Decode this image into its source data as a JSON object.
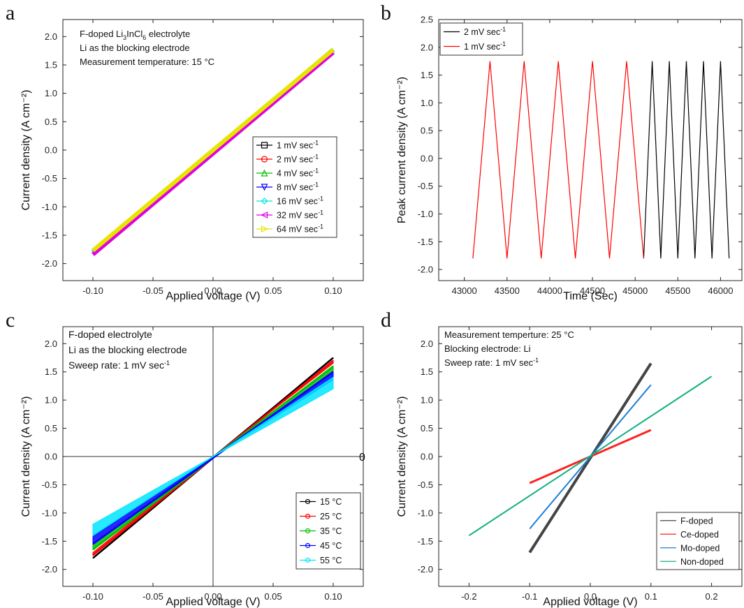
{
  "chart_data": [
    {
      "panel": "a",
      "type": "line",
      "xlabel": "Applied voltage (V)",
      "ylabel": "Current density (A cm⁻²)",
      "xlim": [
        -0.125,
        0.125
      ],
      "ylim": [
        -2.3,
        2.3
      ],
      "xticks": [
        "-0.10",
        "-0.05",
        "0.00",
        "0.05",
        "0.10"
      ],
      "xtick_values": [
        -0.1,
        -0.05,
        0,
        0.05,
        0.1
      ],
      "yticks": [
        "-2.0",
        "-1.5",
        "-1.0",
        "-0.5",
        "0.0",
        "0.5",
        "1.0",
        "1.5",
        "2.0"
      ],
      "ytick_values": [
        -2,
        -1.5,
        -1,
        -0.5,
        0,
        0.5,
        1,
        1.5,
        2
      ],
      "annotations": [
        "F-doped Li3InCl6 electrolyte",
        "Li as the blocking electrode",
        "Measurement temperature: 15 °C"
      ],
      "series": [
        {
          "name": "1 mV sec-1",
          "color": "#000000",
          "marker": "square",
          "x": [
            -0.1,
            0.1
          ],
          "y": [
            -1.8,
            1.77
          ]
        },
        {
          "name": "2 mV sec-1",
          "color": "#ff0000",
          "marker": "circle",
          "x": [
            -0.1,
            0.1
          ],
          "y": [
            -1.8,
            1.76
          ]
        },
        {
          "name": "4 mV sec-1",
          "color": "#00c000",
          "marker": "triangle-up",
          "x": [
            -0.1,
            0.1
          ],
          "y": [
            -1.8,
            1.76
          ]
        },
        {
          "name": "8 mV sec-1",
          "color": "#0000ff",
          "marker": "triangle-down",
          "x": [
            -0.1,
            0.1
          ],
          "y": [
            -1.8,
            1.76
          ]
        },
        {
          "name": "16 mV sec-1",
          "color": "#00e5e5",
          "marker": "diamond",
          "x": [
            -0.1,
            0.1
          ],
          "y": [
            -1.8,
            1.76
          ]
        },
        {
          "name": "32 mV sec-1",
          "color": "#e000e0",
          "marker": "triangle-left",
          "x": [
            -0.1,
            0.1
          ],
          "y": [
            -1.84,
            1.72
          ]
        },
        {
          "name": "64 mV sec-1",
          "color": "#e5e500",
          "marker": "triangle-right",
          "x": [
            -0.1,
            0.1
          ],
          "y": [
            -1.77,
            1.77
          ]
        }
      ]
    },
    {
      "panel": "b",
      "type": "line",
      "xlabel": "Time (Sec)",
      "ylabel": "Peak current density (A cm⁻²)",
      "xlim": [
        42700,
        46250
      ],
      "ylim": [
        -2.2,
        2.5
      ],
      "xticks": [
        "43000",
        "43500",
        "44000",
        "44500",
        "45000",
        "45500",
        "46000"
      ],
      "xtick_values": [
        43000,
        43500,
        44000,
        44500,
        45000,
        45500,
        46000
      ],
      "yticks": [
        "-2.0",
        "-1.5",
        "-1.0",
        "-0.5",
        "0.0",
        "0.5",
        "1.0",
        "1.5",
        "2.0",
        "2.5"
      ],
      "ytick_values": [
        -2,
        -1.5,
        -1,
        -0.5,
        0,
        0.5,
        1,
        1.5,
        2,
        2.5
      ],
      "series": [
        {
          "name": "2 mV sec-1",
          "color": "#000000",
          "x": [
            45100,
            45200,
            45300,
            45400,
            45500,
            45600,
            45700,
            45800,
            45900,
            46000,
            46100
          ],
          "y": [
            -1.8,
            1.75,
            -1.8,
            1.75,
            -1.8,
            1.75,
            -1.8,
            1.75,
            -1.8,
            1.75,
            -1.8
          ]
        },
        {
          "name": "1 mV sec-1",
          "color": "#ff0000",
          "x": [
            43100,
            43300,
            43500,
            43700,
            43900,
            44100,
            44300,
            44500,
            44700,
            44900,
            45100
          ],
          "y": [
            -1.8,
            1.75,
            -1.8,
            1.75,
            -1.8,
            1.75,
            -1.8,
            1.75,
            -1.8,
            1.75,
            -1.8
          ]
        }
      ]
    },
    {
      "panel": "c",
      "type": "line",
      "xlabel": "Applied voltage (V)",
      "ylabel": "Current density (A cm⁻²)",
      "xlim": [
        -0.125,
        0.125
      ],
      "ylim": [
        -2.3,
        2.3
      ],
      "xticks": [
        "-0.10",
        "-0.05",
        "0.00",
        "0.05",
        "0.10"
      ],
      "xtick_values": [
        -0.1,
        -0.05,
        0,
        0.05,
        0.1
      ],
      "yticks": [
        "-2.0",
        "-1.5",
        "-1.0",
        "-0.5",
        "0.0",
        "0.5",
        "1.0",
        "1.5",
        "2.0"
      ],
      "ytick_values": [
        -2,
        -1.5,
        -1,
        -0.5,
        0,
        0.5,
        1,
        1.5,
        2
      ],
      "stray_label": "0",
      "annotations": [
        "F-doped electrolyte",
        "Li as the blocking electrode",
        "Sweep rate: 1 mV sec-1"
      ],
      "series": [
        {
          "name": "15 °C",
          "color": "#000000",
          "x": [
            -0.1,
            0.1
          ],
          "y": [
            -1.8,
            1.75
          ]
        },
        {
          "name": "25 °C",
          "color": "#ff0000",
          "x": [
            -0.1,
            0.1
          ],
          "y": [
            -1.75,
            1.7
          ]
        },
        {
          "name": "35 °C",
          "color": "#00c000",
          "x": [
            -0.1,
            0.1
          ],
          "y": [
            -1.65,
            1.6
          ]
        },
        {
          "name": "45 °C",
          "color": "#0000ff",
          "x": [
            -0.1,
            0.1
          ],
          "y": [
            -1.55,
            1.5
          ]
        },
        {
          "name": "55 °C",
          "color": "#00e5ff",
          "x": [
            -0.1,
            0.1
          ],
          "y": [
            -1.4,
            1.4
          ]
        }
      ]
    },
    {
      "panel": "d",
      "type": "line",
      "xlabel": "Applied voltage (V)",
      "ylabel": "Current density (A cm⁻²)",
      "xlim": [
        -0.25,
        0.25
      ],
      "ylim": [
        -2.3,
        2.3
      ],
      "xticks": [
        "-0.2",
        "-0.1",
        "0.0",
        "0.1",
        "0.2"
      ],
      "xtick_values": [
        -0.2,
        -0.1,
        0,
        0.1,
        0.2
      ],
      "yticks": [
        "-2.0",
        "-1.5",
        "-1.0",
        "-0.5",
        "0.0",
        "0.5",
        "1.0",
        "1.5",
        "2.0"
      ],
      "ytick_values": [
        -2,
        -1.5,
        -1,
        -0.5,
        0,
        0.5,
        1,
        1.5,
        2
      ],
      "annotations": [
        "Measurement temperture: 25 °C",
        "Blocking electrode: Li",
        "Sweep rate: 1 mV sec-1"
      ],
      "series": [
        {
          "name": "F-doped",
          "color": "#444444",
          "x": [
            -0.1,
            0.1
          ],
          "y": [
            -1.7,
            1.65
          ]
        },
        {
          "name": "Ce-doped",
          "color": "#ff2020",
          "x": [
            -0.1,
            0.1
          ],
          "y": [
            -0.47,
            0.47
          ]
        },
        {
          "name": "Mo-doped",
          "color": "#1e7fd6",
          "x": [
            -0.1,
            0.1
          ],
          "y": [
            -1.28,
            1.27
          ]
        },
        {
          "name": "Non-doped",
          "color": "#10b080",
          "x": [
            -0.2,
            0.2
          ],
          "y": [
            -1.4,
            1.42
          ]
        }
      ]
    }
  ]
}
